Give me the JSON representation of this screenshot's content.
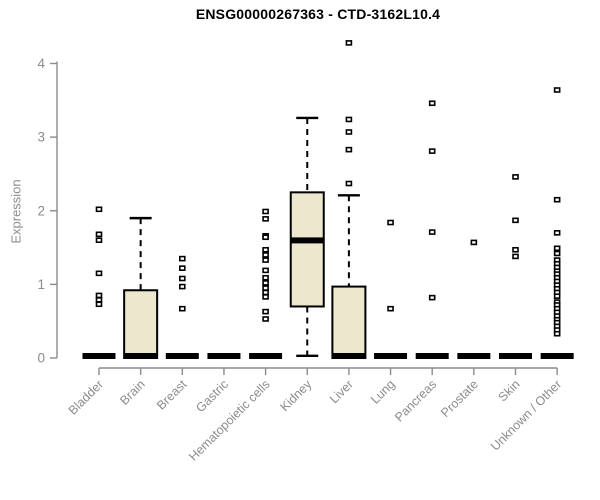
{
  "chart_data": {
    "type": "boxplot",
    "title": "ENSG00000267363 - CTD-3162L10.4",
    "ylabel": "Expression",
    "xlabel": "",
    "ylim": [
      0,
      4.35
    ],
    "yticks": [
      0,
      1,
      2,
      3,
      4
    ],
    "grid": false,
    "legend": "none",
    "box_fill_color": "#EDE7CE",
    "box_stroke_color": "#000000",
    "axis_color": "#8c8c8c",
    "categories": [
      "Bladder",
      "Brain",
      "Breast",
      "Gastric",
      "Hematopoietic cells",
      "Kidney",
      "Liver",
      "Lung",
      "Pancreas",
      "Prostate",
      "Skin",
      "Unknown / Other"
    ],
    "boxes": [
      {
        "category": "Bladder",
        "whisker_low": 0,
        "q1": 0,
        "median": 0,
        "q3": 0,
        "whisker_high": 0,
        "outliers": [
          2.02,
          1.68,
          1.6,
          1.15,
          0.85,
          0.79,
          0.73
        ]
      },
      {
        "category": "Brain",
        "whisker_low": 0,
        "q1": 0,
        "median": 0,
        "q3": 0.92,
        "whisker_high": 1.9,
        "outliers": []
      },
      {
        "category": "Breast",
        "whisker_low": 0,
        "q1": 0,
        "median": 0,
        "q3": 0,
        "whisker_high": 0,
        "outliers": [
          1.35,
          1.22,
          1.08,
          0.97,
          0.67
        ]
      },
      {
        "category": "Gastric",
        "whisker_low": 0,
        "q1": 0,
        "median": 0,
        "q3": 0,
        "whisker_high": 0,
        "outliers": []
      },
      {
        "category": "Hematopoietic cells",
        "whisker_low": 0,
        "q1": 0,
        "median": 0,
        "q3": 0,
        "whisker_high": 0,
        "outliers": [
          1.99,
          1.89,
          1.66,
          1.64,
          1.47,
          1.4,
          1.33,
          1.19,
          1.09,
          1.02,
          0.95,
          0.89,
          0.83,
          0.63,
          0.53
        ]
      },
      {
        "category": "Kidney",
        "whisker_low": 0.03,
        "q1": 0.7,
        "median": 1.57,
        "q3": 2.25,
        "whisker_high": 3.26,
        "outliers": []
      },
      {
        "category": "Liver",
        "whisker_low": 0,
        "q1": 0,
        "median": 0,
        "q3": 0.97,
        "whisker_high": 2.21,
        "outliers": [
          4.28,
          3.24,
          3.07,
          2.83,
          2.37
        ]
      },
      {
        "category": "Lung",
        "whisker_low": 0,
        "q1": 0,
        "median": 0,
        "q3": 0,
        "whisker_high": 0,
        "outliers": [
          1.84,
          0.67
        ]
      },
      {
        "category": "Pancreas",
        "whisker_low": 0,
        "q1": 0,
        "median": 0,
        "q3": 0,
        "whisker_high": 0,
        "outliers": [
          3.46,
          2.81,
          1.71,
          0.82
        ]
      },
      {
        "category": "Prostate",
        "whisker_low": 0,
        "q1": 0,
        "median": 0,
        "q3": 0,
        "whisker_high": 0,
        "outliers": [
          1.57
        ]
      },
      {
        "category": "Skin",
        "whisker_low": 0,
        "q1": 0,
        "median": 0,
        "q3": 0,
        "whisker_high": 0,
        "outliers": [
          2.46,
          1.87,
          1.47,
          1.38
        ]
      },
      {
        "category": "Unknown / Other",
        "whisker_low": 0,
        "q1": 0,
        "median": 0,
        "q3": 0,
        "whisker_high": 0,
        "outliers": [
          3.64,
          2.15,
          1.7,
          1.49,
          1.42,
          1.33,
          1.28,
          1.23,
          1.18,
          1.14,
          1.09,
          1.04,
          0.99,
          0.94,
          0.89,
          0.84,
          0.76,
          0.72,
          0.67,
          0.62,
          0.57,
          0.52,
          0.48,
          0.43,
          0.38,
          0.33
        ]
      }
    ]
  }
}
